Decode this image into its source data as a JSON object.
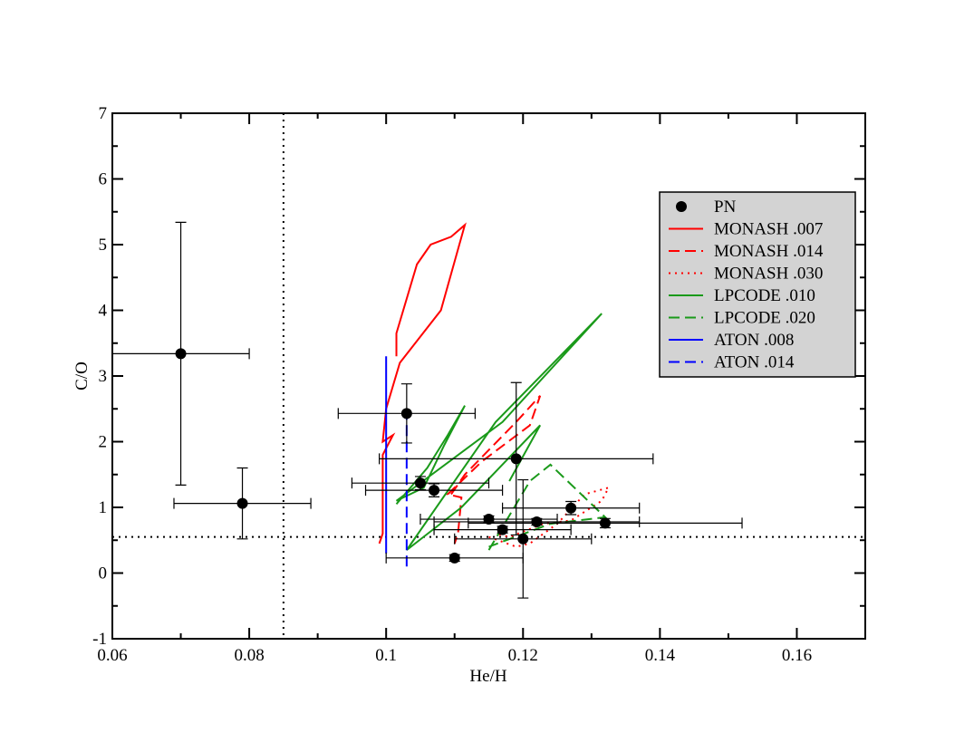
{
  "chart_data": {
    "type": "scatter",
    "x_label": "He/H",
    "y_label": "C/O",
    "xlim": [
      0.06,
      0.17
    ],
    "ylim": [
      -1,
      7
    ],
    "xticks": [
      0.06,
      0.08,
      0.1,
      0.12,
      0.14,
      0.16
    ],
    "yticks": [
      -1,
      0,
      1,
      2,
      3,
      4,
      5,
      6,
      7
    ],
    "reference_lines": {
      "x": 0.085,
      "y": 0.55
    },
    "legend": "upper right",
    "points": {
      "name": "PN",
      "color": "#000000",
      "x": [
        0.07,
        0.079,
        0.103,
        0.105,
        0.107,
        0.119,
        0.115,
        0.117,
        0.122,
        0.127,
        0.132,
        0.12,
        0.11
      ],
      "values": [
        3.34,
        1.06,
        2.43,
        1.37,
        1.26,
        1.74,
        0.82,
        0.66,
        0.78,
        0.99,
        0.76,
        0.52,
        0.23
      ],
      "xerr": [
        0.01,
        0.01,
        0.01,
        0.01,
        0.01,
        0.02,
        0.01,
        0.01,
        0.015,
        0.01,
        0.02,
        0.01,
        0.01
      ],
      "yerr": [
        2.0,
        0.54,
        0.45,
        0.1,
        0.1,
        1.16,
        0.05,
        0.05,
        0.05,
        0.1,
        0.07,
        0.9,
        0.05
      ]
    },
    "series": [
      {
        "name": "MONASH .007",
        "color": "#ff0000",
        "dash": "solid",
        "x": [
          0.1015,
          0.1015,
          0.1045,
          0.1065,
          0.1095,
          0.1115,
          0.108,
          0.102,
          0.1,
          0.0995,
          0.101,
          0.0995,
          0.0995,
          0.099
        ],
        "values": [
          3.3,
          3.65,
          4.7,
          5.0,
          5.12,
          5.3,
          4.0,
          3.2,
          2.5,
          2.0,
          2.1,
          1.8,
          0.6,
          0.45
        ]
      },
      {
        "name": "MONASH .014",
        "color": "#ff0000",
        "dash": "dashed",
        "x": [
          0.1095,
          0.1115,
          0.119,
          0.1225,
          0.121,
          0.114,
          0.109,
          0.111,
          0.1105,
          0.11
        ],
        "values": [
          1.2,
          1.5,
          2.3,
          2.7,
          2.25,
          1.7,
          1.2,
          1.15,
          0.6,
          0.45
        ]
      },
      {
        "name": "MONASH .030",
        "color": "#ff0000",
        "dash": "dotted",
        "x": [
          0.115,
          0.119,
          0.121,
          0.125,
          0.129,
          0.1325,
          0.1315,
          0.127,
          0.123,
          0.118,
          0.116
        ],
        "values": [
          0.55,
          0.4,
          0.45,
          0.75,
          1.2,
          1.3,
          1.1,
          0.8,
          0.75,
          0.55,
          0.6
        ]
      },
      {
        "name": "LPCODE .010",
        "color": "#1a9a1a",
        "dash": "solid",
        "x": [
          0.1015,
          0.106,
          0.109,
          0.1115,
          0.1085,
          0.1055,
          0.1015,
          0.117,
          0.1315,
          0.116,
          0.103,
          0.111,
          0.1225,
          0.118
        ],
        "values": [
          1.05,
          1.6,
          2.1,
          2.55,
          1.95,
          1.3,
          1.1,
          2.3,
          3.95,
          2.3,
          0.35,
          1.0,
          2.25,
          1.4
        ]
      },
      {
        "name": "LPCODE .020",
        "color": "#1a9a1a",
        "dash": "dashed",
        "x": [
          0.115,
          0.121,
          0.124,
          0.13,
          0.132,
          0.124,
          0.115
        ],
        "values": [
          0.35,
          1.4,
          1.65,
          1.05,
          0.85,
          0.75,
          0.4
        ]
      },
      {
        "name": "ATON .008",
        "color": "#0000ff",
        "dash": "solid",
        "x": [
          0.1,
          0.1
        ],
        "values": [
          0.3,
          3.3
        ]
      },
      {
        "name": "ATON .014",
        "color": "#0000ff",
        "dash": "dashed",
        "x": [
          0.103,
          0.103
        ],
        "values": [
          0.1,
          2.5
        ]
      }
    ]
  }
}
